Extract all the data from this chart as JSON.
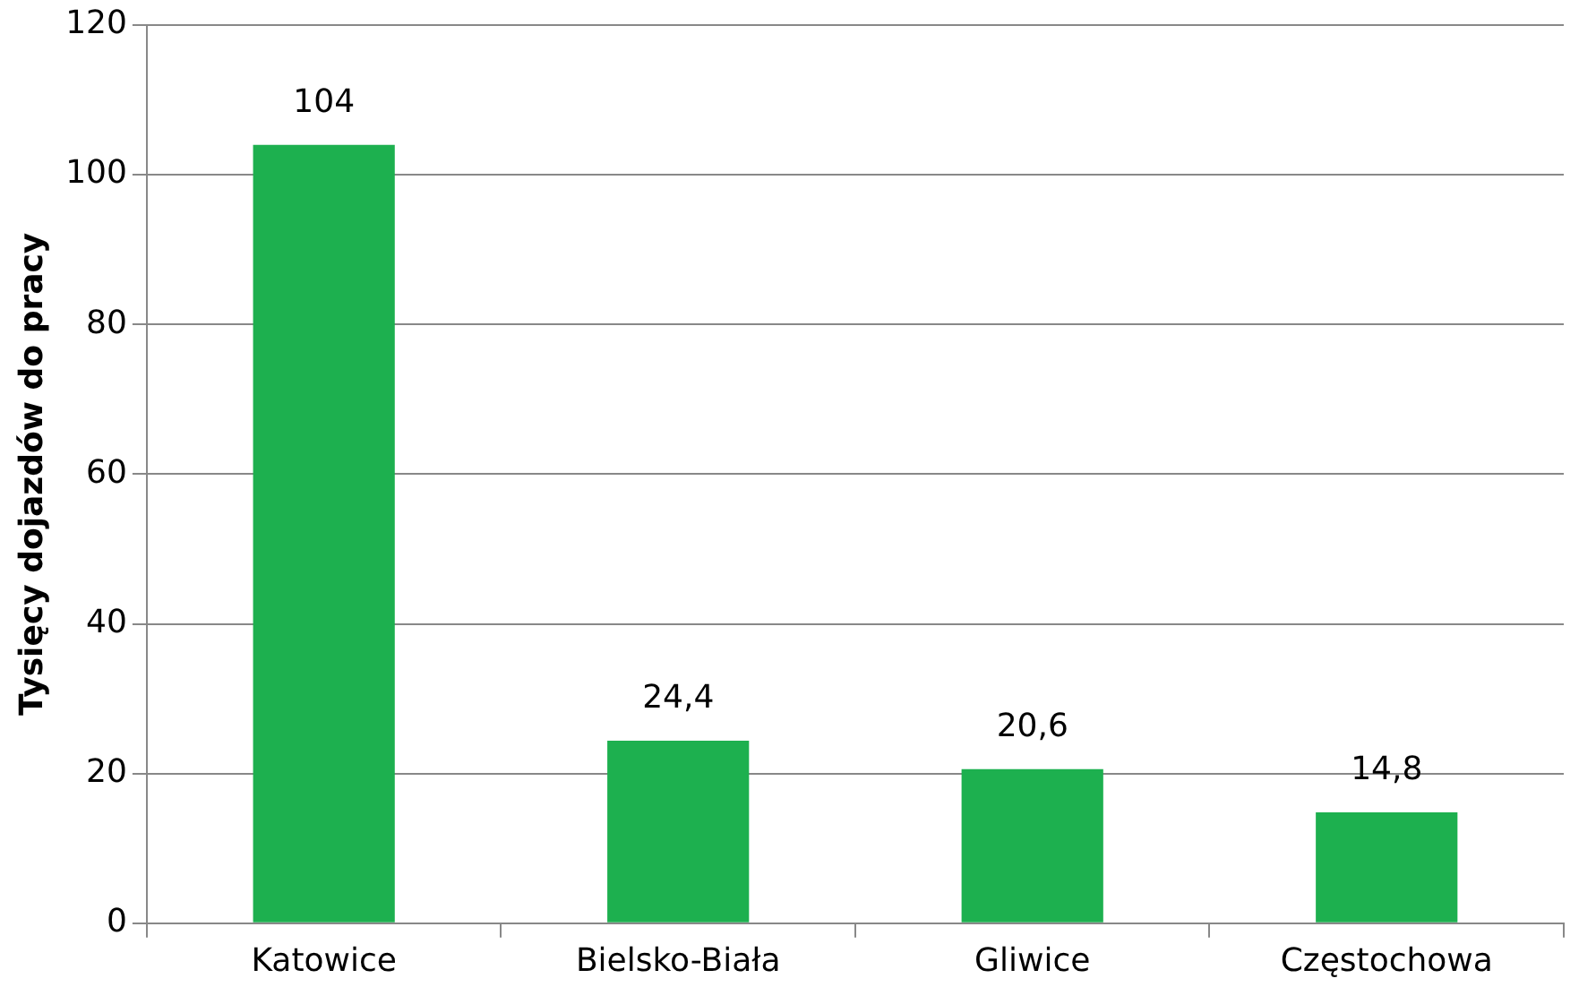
{
  "chart_data": {
    "type": "bar",
    "ylabel": "Tysięcy dojazdów do pracy",
    "categories": [
      "Katowice",
      "Bielsko-Biała",
      "Gliwice",
      "Częstochowa"
    ],
    "values": [
      104,
      24.4,
      20.6,
      14.8
    ],
    "value_labels": [
      "104",
      "24,4",
      "20,6",
      "14,8"
    ],
    "color": "#1db04f",
    "ylim": [
      0,
      120
    ],
    "yticks": [
      0,
      20,
      40,
      60,
      80,
      100,
      120
    ],
    "grid": "y",
    "legend": false
  }
}
